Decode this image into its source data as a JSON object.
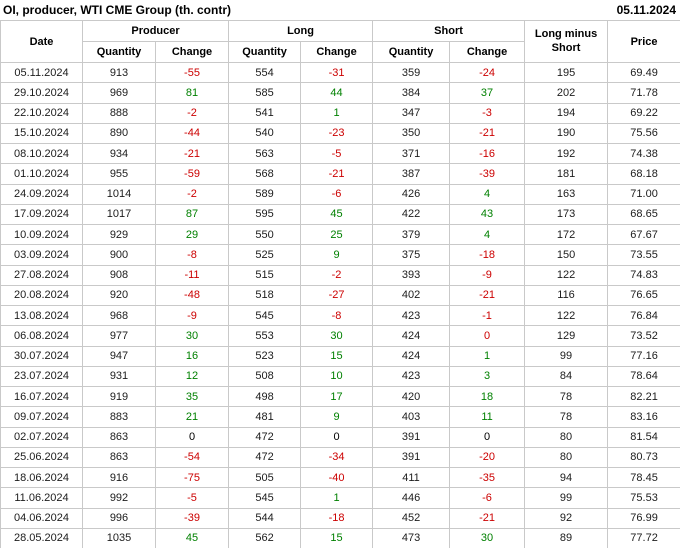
{
  "page": {
    "title": "OI, producer, WTI CME Group (th. contr)",
    "report_date": "05.11.2024"
  },
  "table": {
    "headers": {
      "date": "Date",
      "producer": "Producer",
      "long": "Long",
      "short": "Short",
      "quantity": "Quantity",
      "change": "Change",
      "long_minus_short": "Long minus Short",
      "price": "Price"
    },
    "column_keys": [
      "date",
      "producer-quantity",
      "producer-change",
      "long-quantity",
      "long-change",
      "short-quantity",
      "short-change",
      "long-minus-short",
      "price"
    ],
    "change_palette": {
      "neg": "#cc0000",
      "pos": "#008000",
      "zero": "#000000"
    },
    "rows": [
      {
        "cells": [
          "05.11.2024",
          "913",
          "-55",
          "554",
          "-31",
          "359",
          "-24",
          "195",
          "69.49"
        ],
        "colors": [
          null,
          null,
          "neg",
          null,
          "neg",
          null,
          "neg",
          null,
          null
        ]
      },
      {
        "cells": [
          "29.10.2024",
          "969",
          "81",
          "585",
          "44",
          "384",
          "37",
          "202",
          "71.78"
        ],
        "colors": [
          null,
          null,
          "pos",
          null,
          "pos",
          null,
          "pos",
          null,
          null
        ]
      },
      {
        "cells": [
          "22.10.2024",
          "888",
          "-2",
          "541",
          "1",
          "347",
          "-3",
          "194",
          "69.22"
        ],
        "colors": [
          null,
          null,
          "neg",
          null,
          "pos",
          null,
          "neg",
          null,
          null
        ]
      },
      {
        "cells": [
          "15.10.2024",
          "890",
          "-44",
          "540",
          "-23",
          "350",
          "-21",
          "190",
          "75.56"
        ],
        "colors": [
          null,
          null,
          "neg",
          null,
          "neg",
          null,
          "neg",
          null,
          null
        ]
      },
      {
        "cells": [
          "08.10.2024",
          "934",
          "-21",
          "563",
          "-5",
          "371",
          "-16",
          "192",
          "74.38"
        ],
        "colors": [
          null,
          null,
          "neg",
          null,
          "neg",
          null,
          "neg",
          null,
          null
        ]
      },
      {
        "cells": [
          "01.10.2024",
          "955",
          "-59",
          "568",
          "-21",
          "387",
          "-39",
          "181",
          "68.18"
        ],
        "colors": [
          null,
          null,
          "neg",
          null,
          "neg",
          null,
          "neg",
          null,
          null
        ]
      },
      {
        "cells": [
          "24.09.2024",
          "1014",
          "-2",
          "589",
          "-6",
          "426",
          "4",
          "163",
          "71.00"
        ],
        "colors": [
          null,
          null,
          "neg",
          null,
          "neg",
          null,
          "pos",
          null,
          null
        ]
      },
      {
        "cells": [
          "17.09.2024",
          "1017",
          "87",
          "595",
          "45",
          "422",
          "43",
          "173",
          "68.65"
        ],
        "colors": [
          null,
          null,
          "pos",
          null,
          "pos",
          null,
          "pos",
          null,
          null
        ]
      },
      {
        "cells": [
          "10.09.2024",
          "929",
          "29",
          "550",
          "25",
          "379",
          "4",
          "172",
          "67.67"
        ],
        "colors": [
          null,
          null,
          "pos",
          null,
          "pos",
          null,
          "pos",
          null,
          null
        ]
      },
      {
        "cells": [
          "03.09.2024",
          "900",
          "-8",
          "525",
          "9",
          "375",
          "-18",
          "150",
          "73.55"
        ],
        "colors": [
          null,
          null,
          "neg",
          null,
          "pos",
          null,
          "neg",
          null,
          null
        ]
      },
      {
        "cells": [
          "27.08.2024",
          "908",
          "-11",
          "515",
          "-2",
          "393",
          "-9",
          "122",
          "74.83"
        ],
        "colors": [
          null,
          null,
          "neg",
          null,
          "neg",
          null,
          "neg",
          null,
          null
        ]
      },
      {
        "cells": [
          "20.08.2024",
          "920",
          "-48",
          "518",
          "-27",
          "402",
          "-21",
          "116",
          "76.65"
        ],
        "colors": [
          null,
          null,
          "neg",
          null,
          "neg",
          null,
          "neg",
          null,
          null
        ]
      },
      {
        "cells": [
          "13.08.2024",
          "968",
          "-9",
          "545",
          "-8",
          "423",
          "-1",
          "122",
          "76.84"
        ],
        "colors": [
          null,
          null,
          "neg",
          null,
          "neg",
          null,
          "neg",
          null,
          null
        ]
      },
      {
        "cells": [
          "06.08.2024",
          "977",
          "30",
          "553",
          "30",
          "424",
          "0",
          "129",
          "73.52"
        ],
        "colors": [
          null,
          null,
          "pos",
          null,
          "pos",
          null,
          "neg",
          null,
          null
        ]
      },
      {
        "cells": [
          "30.07.2024",
          "947",
          "16",
          "523",
          "15",
          "424",
          "1",
          "99",
          "77.16"
        ],
        "colors": [
          null,
          null,
          "pos",
          null,
          "pos",
          null,
          "pos",
          null,
          null
        ]
      },
      {
        "cells": [
          "23.07.2024",
          "931",
          "12",
          "508",
          "10",
          "423",
          "3",
          "84",
          "78.64"
        ],
        "colors": [
          null,
          null,
          "pos",
          null,
          "pos",
          null,
          "pos",
          null,
          null
        ]
      },
      {
        "cells": [
          "16.07.2024",
          "919",
          "35",
          "498",
          "17",
          "420",
          "18",
          "78",
          "82.21"
        ],
        "colors": [
          null,
          null,
          "pos",
          null,
          "pos",
          null,
          "pos",
          null,
          null
        ]
      },
      {
        "cells": [
          "09.07.2024",
          "883",
          "21",
          "481",
          "9",
          "403",
          "11",
          "78",
          "83.16"
        ],
        "colors": [
          null,
          null,
          "pos",
          null,
          "pos",
          null,
          "pos",
          null,
          null
        ]
      },
      {
        "cells": [
          "02.07.2024",
          "863",
          "0",
          "472",
          "0",
          "391",
          "0",
          "80",
          "81.54"
        ],
        "colors": [
          null,
          null,
          "zero",
          null,
          "zero",
          null,
          "zero",
          null,
          null
        ]
      },
      {
        "cells": [
          "25.06.2024",
          "863",
          "-54",
          "472",
          "-34",
          "391",
          "-20",
          "80",
          "80.73"
        ],
        "colors": [
          null,
          null,
          "neg",
          null,
          "neg",
          null,
          "neg",
          null,
          null
        ]
      },
      {
        "cells": [
          "18.06.2024",
          "916",
          "-75",
          "505",
          "-40",
          "411",
          "-35",
          "94",
          "78.45"
        ],
        "colors": [
          null,
          null,
          "neg",
          null,
          "neg",
          null,
          "neg",
          null,
          null
        ]
      },
      {
        "cells": [
          "11.06.2024",
          "992",
          "-5",
          "545",
          "1",
          "446",
          "-6",
          "99",
          "75.53"
        ],
        "colors": [
          null,
          null,
          "neg",
          null,
          "pos",
          null,
          "neg",
          null,
          null
        ]
      },
      {
        "cells": [
          "04.06.2024",
          "996",
          "-39",
          "544",
          "-18",
          "452",
          "-21",
          "92",
          "76.99"
        ],
        "colors": [
          null,
          null,
          "neg",
          null,
          "neg",
          null,
          "neg",
          null,
          null
        ]
      },
      {
        "cells": [
          "28.05.2024",
          "1035",
          "45",
          "562",
          "15",
          "473",
          "30",
          "89",
          "77.72"
        ],
        "colors": [
          null,
          null,
          "pos",
          null,
          "pos",
          null,
          "pos",
          null,
          null
        ]
      }
    ]
  }
}
